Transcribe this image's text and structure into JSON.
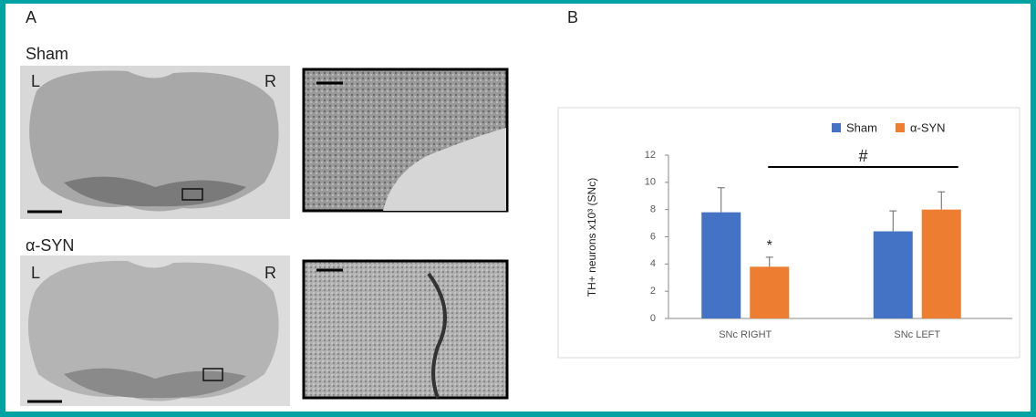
{
  "panels": {
    "a_label": "A",
    "b_label": "B"
  },
  "images": [
    {
      "group": "Sham",
      "left": "L",
      "right": "R"
    },
    {
      "group": "α-SYN",
      "left": "L",
      "right": "R"
    }
  ],
  "chart_data": {
    "type": "bar",
    "y_label": "TH+ neurons x10³ (SNc)",
    "categories": [
      "SNc RIGHT",
      "SNc LEFT"
    ],
    "series": [
      {
        "name": "Sham",
        "color": "#4472c4",
        "values": [
          7.8,
          6.4
        ],
        "errors": [
          1.8,
          1.5
        ]
      },
      {
        "name": "α-SYN",
        "color": "#ed7d31",
        "values": [
          3.8,
          8.0
        ],
        "errors": [
          0.7,
          1.3
        ]
      }
    ],
    "annotations": [
      "*",
      "#"
    ],
    "ylim": [
      0,
      12
    ],
    "yticks": [
      0,
      2,
      4,
      6,
      8,
      10,
      12
    ],
    "legend": "top"
  }
}
